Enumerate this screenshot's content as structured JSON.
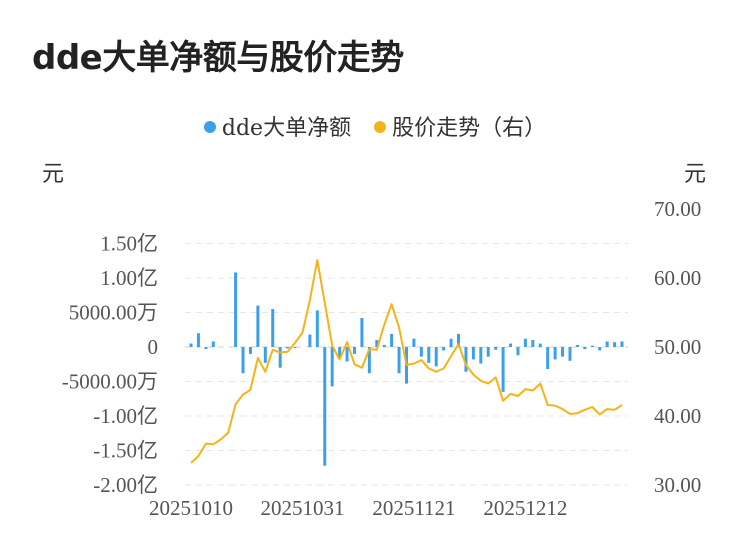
{
  "title": "dde大单净额与股价走势",
  "legend": {
    "series1": "dde大单净额",
    "series2": "股价走势（右）"
  },
  "units": {
    "left": "元",
    "right": "元"
  },
  "colors": {
    "bar": "#3ba0e8",
    "line": "#f5b31b",
    "grid": "#e6e6e6"
  },
  "chart_data": {
    "type": "bar+line",
    "title": "dde大单净额与股价走势",
    "x_tick_labels": [
      "20251010",
      "20251031",
      "20251121",
      "20251212"
    ],
    "x_tick_index": [
      0,
      15,
      30,
      45
    ],
    "left_axis": {
      "unit": "元",
      "ylim": [
        -200000000,
        200000000
      ],
      "tick_values": [
        150000000,
        100000000,
        50000000,
        0,
        -50000000,
        -100000000,
        -150000000,
        -200000000
      ],
      "tick_labels": [
        "1.50亿",
        "1.00亿",
        "5000.00万",
        "0",
        "-5000.00万",
        "-1.00亿",
        "-1.50亿",
        "-2.00亿"
      ]
    },
    "right_axis": {
      "unit": "元",
      "ylim": [
        30,
        70
      ],
      "tick_values": [
        70,
        60,
        50,
        40,
        30
      ],
      "tick_labels": [
        "70.00",
        "60.00",
        "50.00",
        "40.00",
        "30.00"
      ]
    },
    "grid": true,
    "legend_position": "top-center",
    "series": [
      {
        "name": "dde大单净额",
        "kind": "bar",
        "axis": "left",
        "values": [
          5000000,
          20000000,
          -3000000,
          8000000,
          0,
          0,
          108000000,
          -38000000,
          -10000000,
          60000000,
          -23000000,
          55000000,
          -30000000,
          -2000000,
          -1000000,
          0,
          18000000,
          53000000,
          -172000000,
          -57000000,
          -17000000,
          -21000000,
          -10000000,
          42000000,
          -38000000,
          10000000,
          3000000,
          19000000,
          -38000000,
          -53000000,
          12000000,
          -14000000,
          -23000000,
          -28000000,
          -5000000,
          12000000,
          19000000,
          -36000000,
          -18000000,
          -24000000,
          -14000000,
          -4000000,
          -65000000,
          5000000,
          -12000000,
          12000000,
          10000000,
          5000000,
          -32000000,
          -18000000,
          -14000000,
          -20000000,
          3000000,
          -3000000,
          2000000,
          -5000000,
          8000000,
          7000000,
          8000000
        ]
      },
      {
        "name": "股价走势（右）",
        "kind": "line",
        "axis": "right",
        "values": [
          33.2,
          34.2,
          36.0,
          35.9,
          36.6,
          37.6,
          41.7,
          43.1,
          43.8,
          48.4,
          46.4,
          49.6,
          49.2,
          49.3,
          50.6,
          52.1,
          56.8,
          62.6,
          56.4,
          50.2,
          48.2,
          50.7,
          47.5,
          47.0,
          49.7,
          49.6,
          53.2,
          56.2,
          52.8,
          47.4,
          47.6,
          48.1,
          46.9,
          46.4,
          46.9,
          48.7,
          50.4,
          47.4,
          46.0,
          45.1,
          44.7,
          45.6,
          42.2,
          43.2,
          42.9,
          43.9,
          43.7,
          44.7,
          41.6,
          41.5,
          41.0,
          40.3,
          40.4,
          40.9,
          41.3,
          40.2,
          41.0,
          40.9,
          41.6
        ]
      }
    ]
  }
}
